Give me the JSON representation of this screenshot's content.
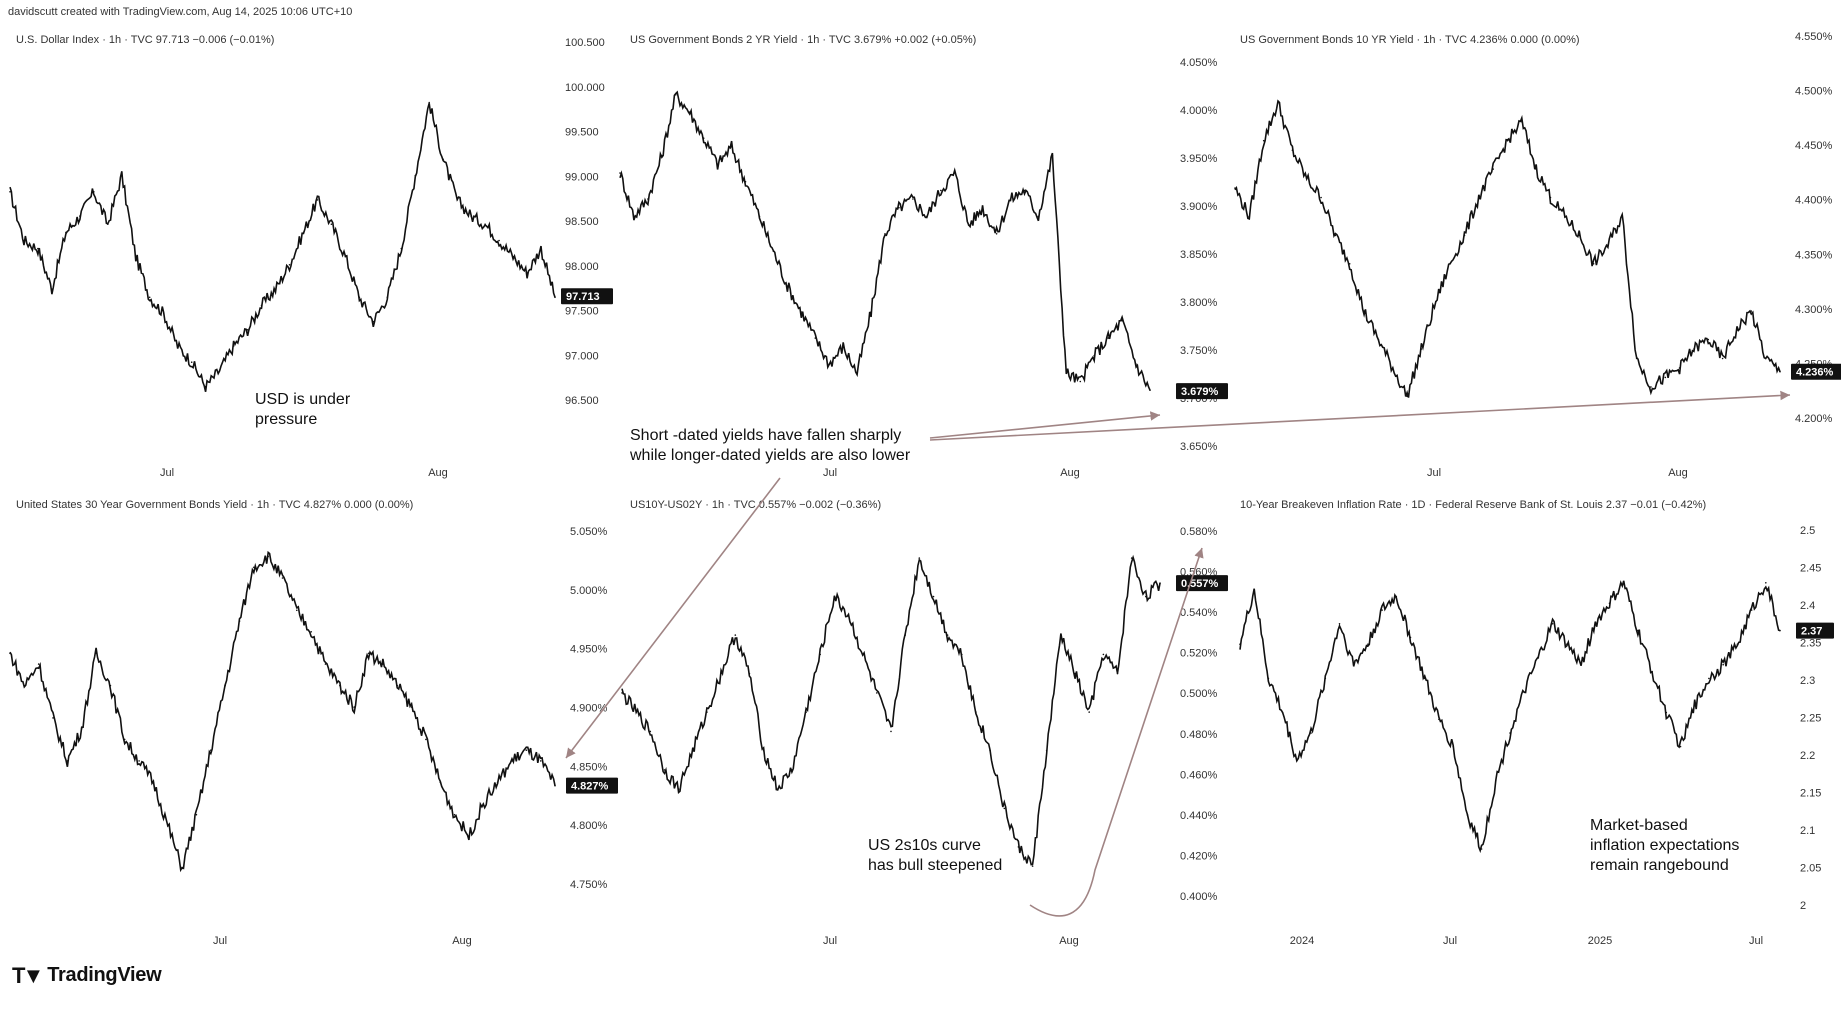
{
  "header": "davidscutt created with TradingView.com, Aug 14, 2025 10:06 UTC+10",
  "logo_text": "TradingView",
  "colors": {
    "line": "#111111",
    "arrow": "#a08484",
    "badge": "#111111",
    "background": "#ffffff"
  },
  "chart_data": [
    {
      "type": "line",
      "title": "U.S. Dollar Index · 1h · TVC  97.713  −0.006 (−0.01%)",
      "x_ticks": [
        "Jul",
        "Aug"
      ],
      "y_ticks": [
        "100.500",
        "100.000",
        "99.500",
        "99.000",
        "98.500",
        "98.000",
        "97.500",
        "97.000",
        "96.500"
      ],
      "ylim": [
        96.25,
        100.5
      ],
      "last_value": 97.713,
      "last_label": "97.713",
      "series": [
        {
          "values": [
            99.0,
            98.4,
            98.3,
            97.8,
            98.5,
            98.7,
            99.0,
            98.6,
            99.2,
            98.2,
            97.7,
            97.5,
            97.1,
            96.9,
            96.6,
            96.8,
            97.1,
            97.3,
            97.6,
            97.8,
            98.1,
            98.5,
            98.9,
            98.6,
            98.2,
            97.7,
            97.4,
            97.7,
            98.3,
            99.2,
            100.1,
            99.4,
            98.9,
            98.7,
            98.6,
            98.4,
            98.2,
            98.0,
            98.3,
            97.7
          ]
        }
      ],
      "annotation": "USD is under\npressure"
    },
    {
      "type": "line",
      "title": "US Government Bonds 2 YR Yield · 1h · TVC  3.679%  +0.002 (+0.05%)",
      "x_ticks": [
        "Jul",
        "Aug"
      ],
      "y_ticks": [
        "4.050%",
        "4.000%",
        "3.950%",
        "3.900%",
        "3.850%",
        "3.800%",
        "3.750%",
        "3.700%",
        "3.650%"
      ],
      "ylim": [
        3.64,
        4.06
      ],
      "last_value": 3.679,
      "last_label": "3.679%",
      "series": [
        {
          "values": [
            3.93,
            3.88,
            3.9,
            3.95,
            4.02,
            4.0,
            3.97,
            3.94,
            3.96,
            3.92,
            3.88,
            3.84,
            3.8,
            3.77,
            3.74,
            3.71,
            3.73,
            3.7,
            3.77,
            3.86,
            3.89,
            3.9,
            3.88,
            3.91,
            3.93,
            3.87,
            3.89,
            3.86,
            3.9,
            3.91,
            3.88,
            3.95,
            3.7,
            3.69,
            3.72,
            3.74,
            3.76,
            3.71,
            3.68
          ]
        }
      ],
      "annotation": "Short -dated yields have fallen sharply\nwhile longer-dated yields are also lower"
    },
    {
      "type": "line",
      "title": "US Government Bonds 10 YR Yield · 1h · TVC  4.236%  0.000 (0.00%)",
      "x_ticks": [
        "Jul",
        "Aug"
      ],
      "y_ticks": [
        "4.550%",
        "4.500%",
        "4.450%",
        "4.400%",
        "4.350%",
        "4.300%",
        "4.250%",
        "4.200%"
      ],
      "ylim": [
        4.185,
        4.56
      ],
      "last_value": 4.236,
      "last_label": "4.236%",
      "series": [
        {
          "values": [
            4.43,
            4.4,
            4.48,
            4.52,
            4.47,
            4.44,
            4.42,
            4.38,
            4.35,
            4.3,
            4.27,
            4.24,
            4.21,
            4.26,
            4.31,
            4.35,
            4.38,
            4.42,
            4.45,
            4.48,
            4.5,
            4.45,
            4.42,
            4.4,
            4.38,
            4.35,
            4.37,
            4.4,
            4.25,
            4.22,
            4.23,
            4.24,
            4.26,
            4.27,
            4.25,
            4.28,
            4.3,
            4.25,
            4.236
          ]
        }
      ]
    },
    {
      "type": "line",
      "title": "United States 30 Year Government Bonds Yield · 1h · TVC  4.827%  0.000 (0.00%)",
      "x_ticks": [
        "Jul",
        "Aug"
      ],
      "y_ticks": [
        "5.050%",
        "5.000%",
        "4.950%",
        "4.900%",
        "4.850%",
        "4.800%",
        "4.750%"
      ],
      "ylim": [
        4.73,
        5.06
      ],
      "last_value": 4.827,
      "last_label": "4.827%",
      "series": [
        {
          "values": [
            4.95,
            4.92,
            4.94,
            4.89,
            4.85,
            4.88,
            4.95,
            4.92,
            4.87,
            4.85,
            4.83,
            4.79,
            4.75,
            4.8,
            4.86,
            4.92,
            4.98,
            5.03,
            5.04,
            5.02,
            4.99,
            4.97,
            4.94,
            4.92,
            4.9,
            4.95,
            4.94,
            4.92,
            4.9,
            4.87,
            4.83,
            4.8,
            4.78,
            4.81,
            4.83,
            4.85,
            4.86,
            4.85,
            4.827
          ]
        }
      ]
    },
    {
      "type": "line",
      "title": "US10Y-US02Y · 1h · TVC  0.557%  −0.002 (−0.36%)",
      "x_ticks": [
        "Jul",
        "Aug"
      ],
      "y_ticks": [
        "0.580%",
        "0.560%",
        "0.540%",
        "0.520%",
        "0.500%",
        "0.480%",
        "0.460%",
        "0.440%",
        "0.420%",
        "0.400%"
      ],
      "ylim": [
        0.395,
        0.582
      ],
      "last_value": 0.557,
      "last_label": "0.557%",
      "series": [
        {
          "values": [
            0.5,
            0.49,
            0.48,
            0.46,
            0.45,
            0.47,
            0.49,
            0.51,
            0.53,
            0.51,
            0.47,
            0.45,
            0.46,
            0.49,
            0.52,
            0.55,
            0.54,
            0.52,
            0.5,
            0.48,
            0.53,
            0.57,
            0.55,
            0.53,
            0.52,
            0.49,
            0.47,
            0.44,
            0.42,
            0.41,
            0.47,
            0.53,
            0.51,
            0.49,
            0.52,
            0.51,
            0.57,
            0.55,
            0.557
          ]
        }
      ],
      "annotation": "US 2s10s curve\nhas bull steepened"
    },
    {
      "type": "line",
      "title": "10-Year Breakeven Inflation Rate · 1D · Federal Reserve Bank of St. Louis  2.37  −0.01 (−0.42%)",
      "x_ticks": [
        "2024",
        "Jul",
        "2025",
        "Jul"
      ],
      "y_ticks": [
        "2.5",
        "2.45",
        "2.4",
        "2.35",
        "2.3",
        "2.25",
        "2.2",
        "2.15",
        "2.1",
        "2.05",
        "2"
      ],
      "ylim": [
        1.99,
        2.51
      ],
      "last_value": 2.37,
      "last_label": "2.37",
      "series": [
        {
          "values": [
            2.35,
            2.43,
            2.3,
            2.25,
            2.18,
            2.22,
            2.3,
            2.38,
            2.32,
            2.35,
            2.4,
            2.42,
            2.36,
            2.3,
            2.24,
            2.2,
            2.1,
            2.05,
            2.15,
            2.22,
            2.28,
            2.33,
            2.38,
            2.35,
            2.32,
            2.38,
            2.41,
            2.44,
            2.37,
            2.31,
            2.25,
            2.2,
            2.26,
            2.3,
            2.32,
            2.35,
            2.4,
            2.44,
            2.37
          ]
        }
      ],
      "annotation": "Market-based\ninflation expectations\nremain rangebound"
    }
  ]
}
